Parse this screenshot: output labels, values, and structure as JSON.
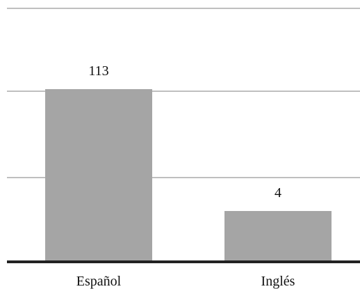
{
  "chart_data": {
    "type": "bar",
    "categories": [
      "Español",
      "Inglés"
    ],
    "values": [
      113,
      4
    ],
    "value_labels": [
      "113",
      "4"
    ],
    "title": "",
    "xlabel": "",
    "ylabel": "",
    "grid": true,
    "bar_color": "#a5a5a5",
    "grid_color": "#bfbfbf",
    "axis_color": "#222222"
  }
}
